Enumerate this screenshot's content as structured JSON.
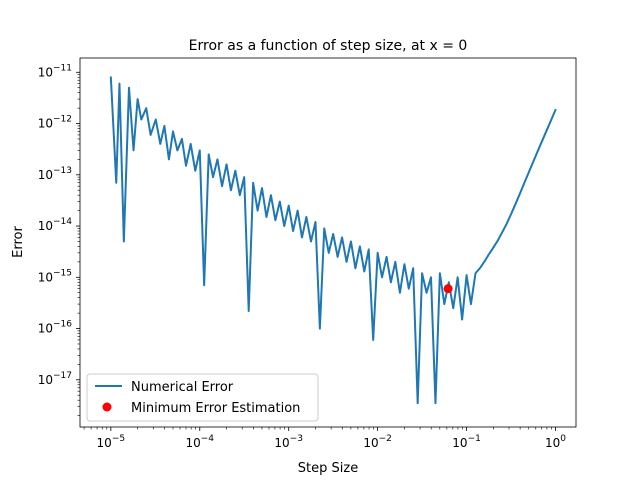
{
  "chart_data": {
    "type": "line",
    "title": "Error as a function of step size, at x = 0",
    "xlabel": "Step Size",
    "ylabel": "Error",
    "x_scale": "log",
    "y_scale": "log",
    "xlim": [
      4.5e-06,
      1.7
    ],
    "ylim": [
      1.2e-18,
      1.9e-11
    ],
    "x_ticks": [
      {
        "value": 1e-05,
        "base": "10",
        "exp": "−5"
      },
      {
        "value": 0.0001,
        "base": "10",
        "exp": "−4"
      },
      {
        "value": 0.001,
        "base": "10",
        "exp": "−3"
      },
      {
        "value": 0.01,
        "base": "10",
        "exp": "−2"
      },
      {
        "value": 0.1,
        "base": "10",
        "exp": "−1"
      },
      {
        "value": 1,
        "base": "10",
        "exp": "0"
      }
    ],
    "y_ticks": [
      {
        "value": 1e-17,
        "base": "10",
        "exp": "−17"
      },
      {
        "value": 1e-16,
        "base": "10",
        "exp": "−16"
      },
      {
        "value": 1e-15,
        "base": "10",
        "exp": "−15"
      },
      {
        "value": 1e-14,
        "base": "10",
        "exp": "−14"
      },
      {
        "value": 1e-13,
        "base": "10",
        "exp": "−13"
      },
      {
        "value": 1e-12,
        "base": "10",
        "exp": "−12"
      },
      {
        "value": 1e-11,
        "base": "10",
        "exp": "−11"
      }
    ],
    "grid": false,
    "legend_position": "lower-left",
    "series": [
      {
        "name": "Numerical Error",
        "kind": "line",
        "color": "#1f77b4",
        "x": [
          1e-05,
          1.15e-05,
          1.25e-05,
          1.4e-05,
          1.6e-05,
          1.8e-05,
          2e-05,
          2.2e-05,
          2.5e-05,
          2.8e-05,
          3.2e-05,
          3.6e-05,
          4e-05,
          4.5e-05,
          5e-05,
          5.6e-05,
          6.3e-05,
          7e-05,
          7.9e-05,
          8.9e-05,
          0.0001,
          0.000112,
          0.000126,
          0.000141,
          0.000158,
          0.000178,
          0.0002,
          0.000224,
          0.000251,
          0.000282,
          0.000316,
          0.000355,
          0.000398,
          0.000447,
          0.000501,
          0.000562,
          0.000631,
          0.000708,
          0.000794,
          0.000891,
          0.001,
          0.00112,
          0.00126,
          0.00141,
          0.00158,
          0.00178,
          0.002,
          0.00224,
          0.00251,
          0.00282,
          0.00316,
          0.00355,
          0.00398,
          0.00447,
          0.00501,
          0.00562,
          0.00631,
          0.00708,
          0.00794,
          0.00891,
          0.01,
          0.0112,
          0.0126,
          0.0141,
          0.0158,
          0.0178,
          0.02,
          0.0224,
          0.0251,
          0.0282,
          0.0316,
          0.0355,
          0.0398,
          0.0447,
          0.0501,
          0.0562,
          0.0631,
          0.0708,
          0.0794,
          0.0891,
          0.1,
          0.112,
          0.126,
          0.141,
          0.158,
          0.178,
          0.2,
          0.224,
          0.251,
          0.282,
          0.316,
          0.355,
          0.398,
          0.447,
          0.501,
          0.562,
          0.631,
          0.708,
          0.794,
          0.891,
          1
        ],
        "y": [
          8e-12,
          7e-14,
          6e-12,
          5e-15,
          5e-12,
          3e-13,
          3e-12,
          1.2e-12,
          2e-12,
          6e-13,
          1.2e-12,
          4e-13,
          9e-13,
          2e-13,
          7e-13,
          3e-13,
          5e-13,
          1.5e-13,
          4e-13,
          1.2e-13,
          3e-13,
          7e-16,
          2.5e-13,
          9e-14,
          2e-13,
          6e-14,
          1.6e-13,
          5e-14,
          1.2e-13,
          4e-14,
          9e-14,
          2.2e-16,
          7e-14,
          2e-14,
          5.5e-14,
          1.5e-14,
          4e-14,
          1.3e-14,
          3e-14,
          1e-14,
          2.5e-14,
          8e-15,
          2e-14,
          6e-15,
          1.5e-14,
          5e-15,
          1.2e-14,
          1e-16,
          9e-15,
          3e-15,
          7e-15,
          2.5e-15,
          6e-15,
          2e-15,
          5e-15,
          1.5e-15,
          4e-15,
          1.3e-15,
          3.5e-15,
          6e-17,
          3e-15,
          1e-15,
          2.5e-15,
          8e-16,
          2e-15,
          5e-16,
          1.8e-15,
          6e-16,
          1.5e-15,
          3.5e-18,
          1.2e-15,
          5e-16,
          1e-15,
          3.5e-18,
          1.2e-15,
          3e-16,
          8e-16,
          2.5e-16,
          1e-15,
          1.5e-16,
          1.1e-15,
          3e-16,
          1.2e-15,
          1.5e-15,
          2e-15,
          2.8e-15,
          3.8e-15,
          5.2e-15,
          7.5e-15,
          1.1e-14,
          1.7e-14,
          2.7e-14,
          4.3e-14,
          7e-14,
          1.12e-13,
          1.8e-13,
          2.9e-13,
          4.6e-13,
          7.3e-13,
          1.16e-12,
          1.85e-12
        ]
      },
      {
        "name": "Minimum Error Estimation",
        "kind": "marker",
        "color": "#ff0000",
        "x": [
          0.062
        ],
        "y": [
          6e-16
        ]
      }
    ]
  }
}
